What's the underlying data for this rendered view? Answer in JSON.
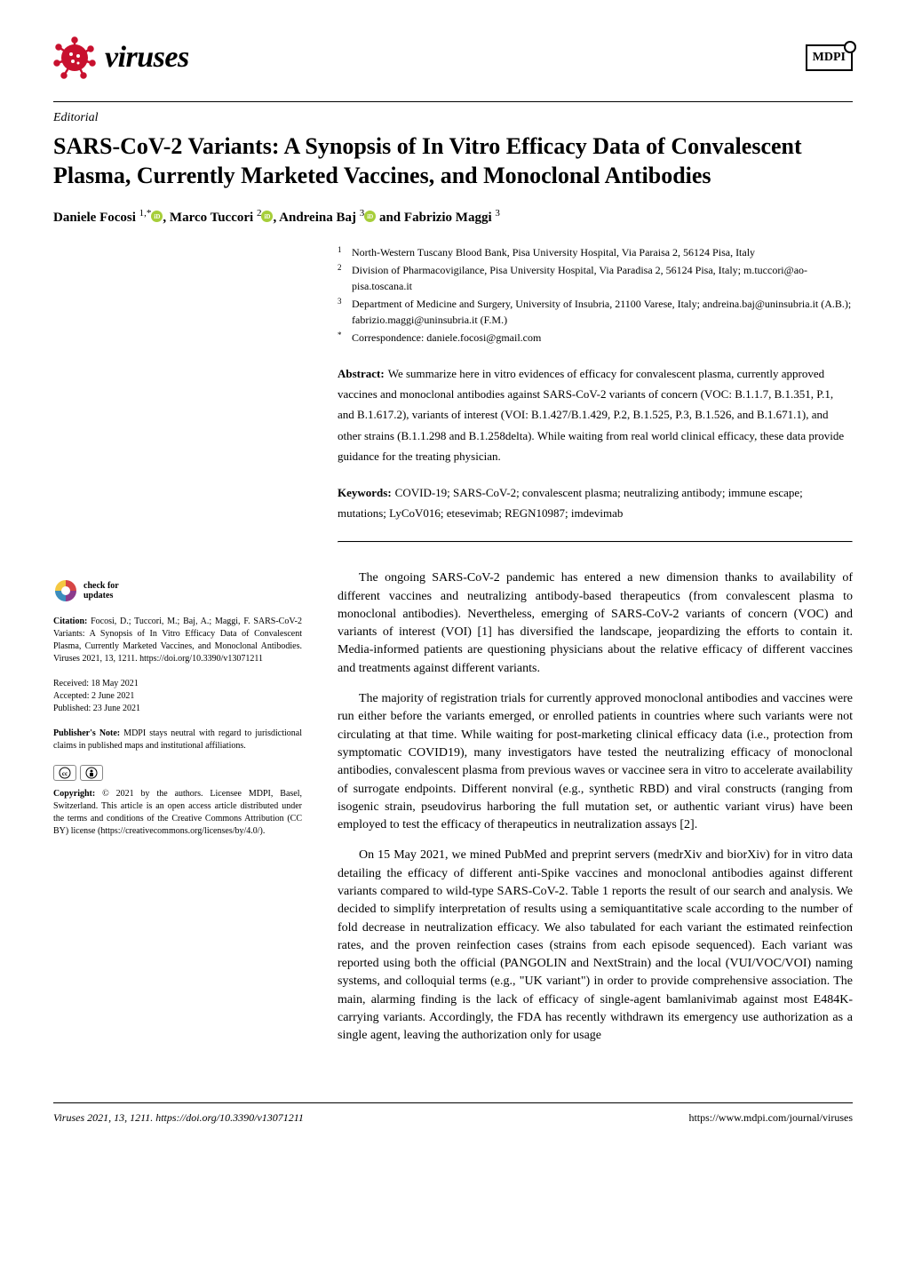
{
  "journal": {
    "name": "viruses",
    "publisher": "MDPI"
  },
  "article": {
    "type": "Editorial",
    "title": "SARS-CoV-2 Variants: A Synopsis of In Vitro Efficacy Data of Convalescent Plasma, Currently Marketed Vaccines, and Monoclonal Antibodies",
    "authors_html": "Daniele Focosi 1,* , Marco Tuccori 2 , Andreina Baj 3  and Fabrizio Maggi 3"
  },
  "authors_rendered": [
    {
      "name": "Daniele Focosi",
      "sup": "1,*",
      "orcid": true
    },
    {
      "name": "Marco Tuccori",
      "sup": "2",
      "orcid": true
    },
    {
      "name": "Andreina Baj",
      "sup": "3",
      "orcid": true
    },
    {
      "name": "Fabrizio Maggi",
      "sup": "3",
      "orcid": false
    }
  ],
  "affiliations": [
    {
      "num": "1",
      "text": "North-Western Tuscany Blood Bank, Pisa University Hospital, Via Paraisa 2, 56124 Pisa, Italy"
    },
    {
      "num": "2",
      "text": "Division of Pharmacovigilance, Pisa University Hospital, Via Paradisa 2, 56124 Pisa, Italy; m.tuccori@ao-pisa.toscana.it"
    },
    {
      "num": "3",
      "text": "Department of Medicine and Surgery, University of Insubria, 21100 Varese, Italy; andreina.baj@uninsubria.it (A.B.); fabrizio.maggi@uninsubria.it (F.M.)"
    },
    {
      "num": "*",
      "text": "Correspondence: daniele.focosi@gmail.com"
    }
  ],
  "abstract": {
    "label": "Abstract:",
    "text": "We summarize here in vitro evidences of efficacy for convalescent plasma, currently approved vaccines and monoclonal antibodies against SARS-CoV-2 variants of concern (VOC: B.1.1.7, B.1.351, P.1, and B.1.617.2), variants of interest (VOI: B.1.427/B.1.429, P.2, B.1.525, P.3, B.1.526, and B.1.671.1), and other strains (B.1.1.298 and B.1.258delta). While waiting from real world clinical efficacy, these data provide guidance for the treating physician."
  },
  "keywords": {
    "label": "Keywords:",
    "text": "COVID-19; SARS-CoV-2; convalescent plasma; neutralizing antibody; immune escape; mutations; LyCoV016; etesevimab; REGN10987; imdevimab"
  },
  "sidebar": {
    "check_updates": "check for updates",
    "citation_label": "Citation:",
    "citation_text": "Focosi, D.; Tuccori, M.; Baj, A.; Maggi, F. SARS-CoV-2 Variants: A Synopsis of In Vitro Efficacy Data of Convalescent Plasma, Currently Marketed Vaccines, and Monoclonal Antibodies. Viruses 2021, 13, 1211. https://doi.org/10.3390/v13071211",
    "received": "Received: 18 May 2021",
    "accepted": "Accepted: 2 June 2021",
    "published": "Published: 23 June 2021",
    "publisher_note_label": "Publisher's Note:",
    "publisher_note_text": "MDPI stays neutral with regard to jurisdictional claims in published maps and institutional affiliations.",
    "copyright_label": "Copyright:",
    "copyright_text": "© 2021 by the authors. Licensee MDPI, Basel, Switzerland. This article is an open access article distributed under the terms and conditions of the Creative Commons Attribution (CC BY) license (https://creativecommons.org/licenses/by/4.0/)."
  },
  "body_paragraphs": [
    "The ongoing SARS-CoV-2 pandemic has entered a new dimension thanks to availability of different vaccines and neutralizing antibody-based therapeutics (from convalescent plasma to monoclonal antibodies). Nevertheless, emerging of SARS-CoV-2 variants of concern (VOC) and variants of interest (VOI) [1] has diversified the landscape, jeopardizing the efforts to contain it. Media-informed patients are questioning physicians about the relative efficacy of different vaccines and treatments against different variants.",
    "The majority of registration trials for currently approved monoclonal antibodies and vaccines were run either before the variants emerged, or enrolled patients in countries where such variants were not circulating at that time. While waiting for post-marketing clinical efficacy data (i.e., protection from symptomatic COVID19), many investigators have tested the neutralizing efficacy of monoclonal antibodies, convalescent plasma from previous waves or vaccinee sera in vitro to accelerate availability of surrogate endpoints. Different nonviral (e.g., synthetic RBD) and viral constructs (ranging from isogenic strain, pseudovirus harboring the full mutation set, or authentic variant virus) have been employed to test the efficacy of therapeutics in neutralization assays [2].",
    "On 15 May 2021, we mined PubMed and preprint servers (medrXiv and biorXiv) for in vitro data detailing the efficacy of different anti-Spike vaccines and monoclonal antibodies against different variants compared to wild-type SARS-CoV-2. Table 1 reports the result of our search and analysis. We decided to simplify interpretation of results using a semiquantitative scale according to the number of fold decrease in neutralization efficacy. We also tabulated for each variant the estimated reinfection rates, and the proven reinfection cases (strains from each episode sequenced). Each variant was reported using both the official (PANGOLIN and NextStrain) and the local (VUI/VOC/VOI) naming systems, and colloquial terms (e.g., \"UK variant\") in order to provide comprehensive association. The main, alarming finding is the lack of efficacy of single-agent bamlanivimab against most E484K-carrying variants. Accordingly, the FDA has recently withdrawn its emergency use authorization as a single agent, leaving the authorization only for usage"
  ],
  "footer": {
    "left": "Viruses 2021, 13, 1211. https://doi.org/10.3390/v13071211",
    "right": "https://www.mdpi.com/journal/viruses"
  },
  "colors": {
    "virus_red": "#c8102e",
    "orcid_green": "#a6ce39",
    "check_yellow": "#f4c842",
    "check_blue": "#3b8dbd",
    "check_purple": "#8b3a8c",
    "check_red": "#d64545"
  }
}
